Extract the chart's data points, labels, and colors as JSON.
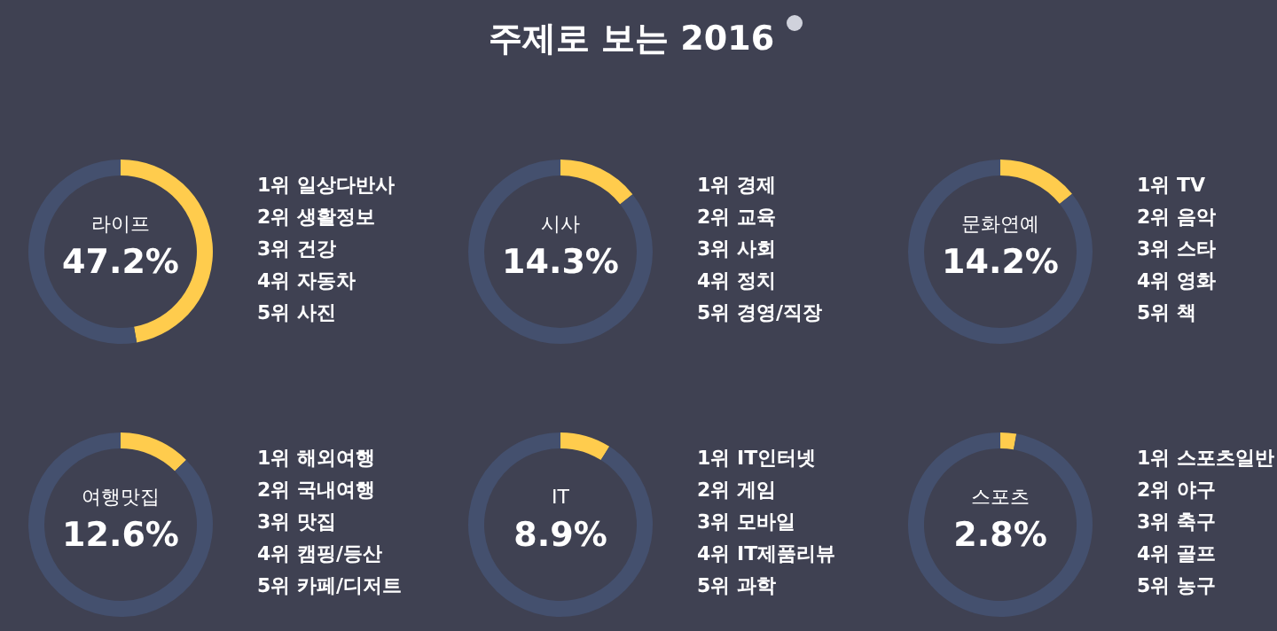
{
  "chart_data": [
    {
      "type": "other",
      "title": "주제로 보는 2016"
    },
    {
      "type": "donut",
      "categories": [
        "라이프",
        null
      ],
      "values": [
        47.2,
        52.8
      ],
      "colors": [
        "#ffcc4d",
        "#44506e"
      ],
      "value_labels": [
        "47.2%",
        null
      ],
      "annotations": [
        "1위 일상다반사",
        "2위 생활정보",
        "3위 건강",
        "4위 자동차",
        "5위 사진"
      ]
    },
    {
      "type": "donut",
      "categories": [
        "시사",
        null
      ],
      "values": [
        14.3,
        85.7
      ],
      "colors": [
        "#ffcc4d",
        "#44506e"
      ],
      "value_labels": [
        "14.3%",
        null
      ],
      "annotations": [
        "1위 경제",
        "2위 교육",
        "3위 사회",
        "4위 정치",
        "5위 경영/직장"
      ]
    },
    {
      "type": "donut",
      "categories": [
        "문화연예",
        null
      ],
      "values": [
        14.2,
        85.8
      ],
      "colors": [
        "#ffcc4d",
        "#44506e"
      ],
      "value_labels": [
        "14.2%",
        null
      ],
      "annotations": [
        "1위 TV",
        "2위 음악",
        "3위 스타",
        "4위 영화",
        "5위 책"
      ]
    },
    {
      "type": "donut",
      "categories": [
        "여행맛집",
        null
      ],
      "values": [
        12.6,
        87.4
      ],
      "colors": [
        "#ffcc4d",
        "#44506e"
      ],
      "value_labels": [
        "12.6%",
        null
      ],
      "annotations": [
        "1위 해외여행",
        "2위 국내여행",
        "3위 맛집",
        "4위 캠핑/등산",
        "5위 카페/디저트"
      ]
    },
    {
      "type": "donut",
      "categories": [
        "IT",
        null
      ],
      "values": [
        8.9,
        91.1
      ],
      "colors": [
        "#ffcc4d",
        "#44506e"
      ],
      "value_labels": [
        "8.9%",
        null
      ],
      "annotations": [
        "1위 IT인터넷",
        "2위 게임",
        "3위 모바일",
        "4위 IT제품리뷰",
        "5위 과학"
      ]
    },
    {
      "type": "donut",
      "categories": [
        "스포츠",
        null
      ],
      "values": [
        2.8,
        97.2
      ],
      "colors": [
        "#ffcc4d",
        "#44506e"
      ],
      "value_labels": [
        "2.8%",
        null
      ],
      "annotations": [
        "1위 스포츠일반",
        "2위 야구",
        "3위 축구",
        "4위 골프",
        "5위 농구"
      ]
    }
  ]
}
